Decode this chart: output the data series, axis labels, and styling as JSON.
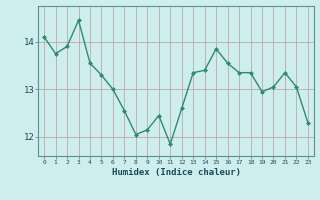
{
  "x": [
    0,
    1,
    2,
    3,
    4,
    5,
    6,
    7,
    8,
    9,
    10,
    11,
    12,
    13,
    14,
    15,
    16,
    17,
    18,
    19,
    20,
    21,
    22,
    23
  ],
  "y": [
    14.1,
    13.75,
    13.9,
    14.45,
    13.55,
    13.3,
    13.0,
    12.55,
    12.05,
    12.15,
    12.45,
    11.85,
    12.6,
    13.35,
    13.4,
    13.85,
    13.55,
    13.35,
    13.35,
    12.95,
    13.05,
    13.35,
    13.05,
    12.3
  ],
  "line_color": "#2e8b72",
  "marker_color": "#2e8b72",
  "bg_color": "#ceeeed",
  "grid_color": "#c0a8a8",
  "xlabel": "Humidex (Indice chaleur)",
  "xlim": [
    -0.5,
    23.5
  ],
  "ylim": [
    11.6,
    14.75
  ],
  "yticks": [
    12,
    13,
    14
  ],
  "xticks": [
    0,
    1,
    2,
    3,
    4,
    5,
    6,
    7,
    8,
    9,
    10,
    11,
    12,
    13,
    14,
    15,
    16,
    17,
    18,
    19,
    20,
    21,
    22,
    23
  ]
}
